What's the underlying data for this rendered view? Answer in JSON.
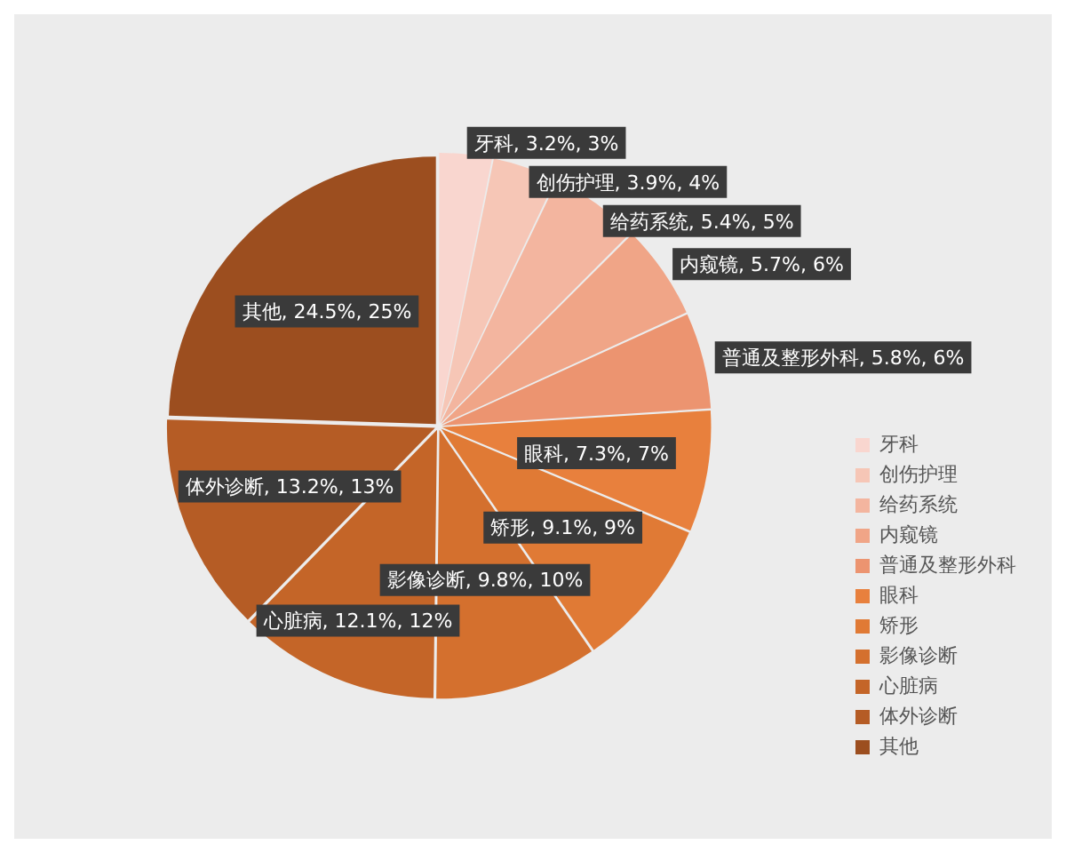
{
  "chart_data": {
    "type": "pie",
    "categories": [
      "牙科",
      "创伤护理",
      "给药系统",
      "内窥镜",
      "普通及整形外科",
      "眼科",
      "矫形",
      "影像诊断",
      "心脏病",
      "体外诊断",
      "其他"
    ],
    "values": [
      3.2,
      3.9,
      5.4,
      5.7,
      5.8,
      7.3,
      9.1,
      9.8,
      12.1,
      13.2,
      24.5
    ],
    "value_labels": [
      "牙科, 3.2%, 3%",
      "创伤护理, 3.9%, 4%",
      "给药系统, 5.4%, 5%",
      "内窥镜, 5.7%, 6%",
      "普通及整形外科, 5.8%, 6%",
      "眼科, 7.3%, 7%",
      "矫形, 9.1%, 9%",
      "影像诊断, 9.8%, 10%",
      "心脏病, 12.1%, 12%",
      "体外诊断, 13.2%, 13%",
      "其他, 24.5%, 25%"
    ],
    "colors": [
      "#f9d6cf",
      "#f6c6b6",
      "#f3b59f",
      "#f0a587",
      "#ec9470",
      "#e8803d",
      "#e07a35",
      "#d4702e",
      "#c46528",
      "#b55c25",
      "#9c4e1f"
    ],
    "legend": "right"
  }
}
